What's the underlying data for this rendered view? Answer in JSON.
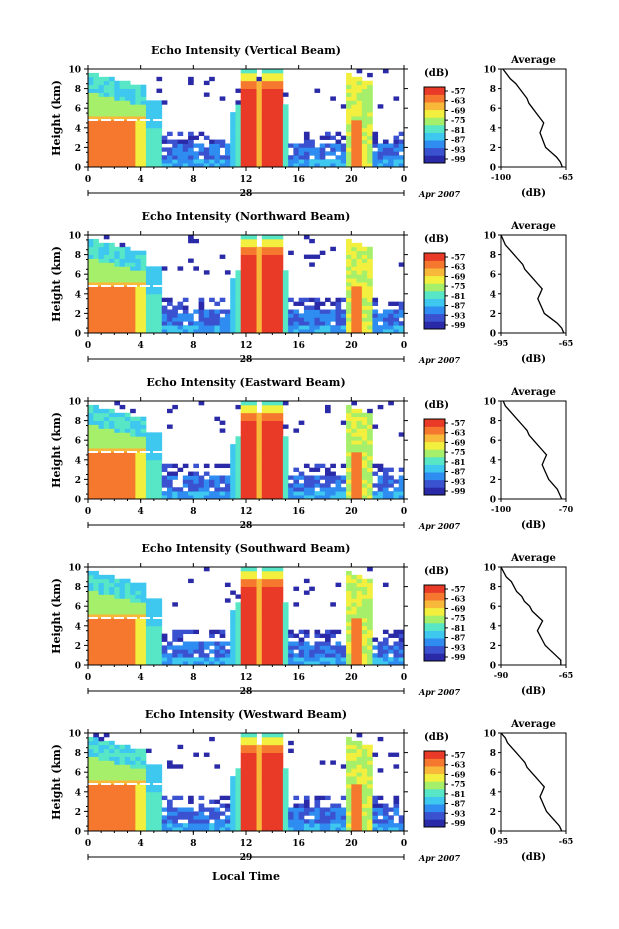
{
  "figure": {
    "panel_ylabel": "Height (km)",
    "xlabel": "Local Time",
    "date_label": "Apr 2007",
    "colorbar_unit": "(dB)",
    "colorbar_ticks": [
      "-57",
      "-63",
      "-69",
      "-75",
      "-81",
      "-87",
      "-93",
      "-99"
    ],
    "x_ticks": [
      "0",
      "4",
      "8",
      "12",
      "16",
      "20",
      "0"
    ],
    "y_ticks": [
      "0",
      "2",
      "4",
      "6",
      "8",
      "10"
    ],
    "avg_title": "Average",
    "avg_xlabel": "(dB)"
  },
  "colors": {
    "scale": [
      "#2a2aa8",
      "#3a52d0",
      "#2f8cf0",
      "#3ec8f0",
      "#57e6c6",
      "#a6ef6a",
      "#f2ef3e",
      "#f8b93a",
      "#f5782e",
      "#e83a26"
    ]
  },
  "chart_data": [
    {
      "type": "heatmap",
      "title": "Echo Intensity (Vertical Beam)",
      "day": "28",
      "x_range_hours": [
        0,
        24
      ],
      "y_range_km": [
        0,
        10
      ],
      "colorbar_range_db": [
        -99,
        -57
      ],
      "average_profile": {
        "xlim": [
          -100,
          -65
        ],
        "xticks": [
          "-100",
          "-65"
        ],
        "height_km": [
          0,
          0.5,
          1,
          1.5,
          2,
          2.5,
          3,
          3.5,
          4,
          4.5,
          5,
          5.5,
          6,
          6.5,
          7,
          7.5,
          8,
          8.5,
          9,
          9.5,
          10
        ],
        "db": [
          -67,
          -68,
          -70,
          -73,
          -76,
          -77,
          -78,
          -79,
          -78,
          -77,
          -79,
          -81,
          -83,
          -85,
          -86,
          -88,
          -90,
          -92,
          -95,
          -97,
          -99
        ]
      }
    },
    {
      "type": "heatmap",
      "title": "Echo Intensity (Northward Beam)",
      "day": "28",
      "x_range_hours": [
        0,
        24
      ],
      "y_range_km": [
        0,
        10
      ],
      "colorbar_range_db": [
        -99,
        -57
      ],
      "average_profile": {
        "xlim": [
          -95,
          -65
        ],
        "xticks": [
          "-95",
          "-65"
        ],
        "height_km": [
          0,
          0.5,
          1,
          1.5,
          2,
          2.5,
          3,
          3.5,
          4,
          4.5,
          5,
          5.5,
          6,
          6.5,
          7,
          7.5,
          8,
          8.5,
          9,
          9.5,
          10
        ],
        "db": [
          -66,
          -67,
          -69,
          -72,
          -75,
          -76,
          -77,
          -78,
          -77,
          -76,
          -78,
          -80,
          -82,
          -84,
          -85,
          -87,
          -89,
          -91,
          -93,
          -94,
          -95
        ]
      }
    },
    {
      "type": "heatmap",
      "title": "Echo Intensity (Eastward Beam)",
      "day": "28",
      "x_range_hours": [
        0,
        24
      ],
      "y_range_km": [
        0,
        10
      ],
      "colorbar_range_db": [
        -99,
        -57
      ],
      "average_profile": {
        "xlim": [
          -100,
          -70
        ],
        "xticks": [
          "-100",
          "-70"
        ],
        "height_km": [
          0,
          0.5,
          1,
          1.5,
          2,
          2.5,
          3,
          3.5,
          4,
          4.5,
          5,
          5.5,
          6,
          6.5,
          7,
          7.5,
          8,
          8.5,
          9,
          9.5,
          10
        ],
        "db": [
          -72,
          -73,
          -74,
          -76,
          -78,
          -79,
          -80,
          -81,
          -80,
          -79,
          -81,
          -83,
          -85,
          -87,
          -88,
          -90,
          -92,
          -94,
          -96,
          -98,
          -99
        ]
      }
    },
    {
      "type": "heatmap",
      "title": "Echo Intensity (Southward Beam)",
      "day": "28",
      "x_range_hours": [
        0,
        24
      ],
      "y_range_km": [
        0,
        10
      ],
      "colorbar_range_db": [
        -99,
        -57
      ],
      "average_profile": {
        "xlim": [
          -90,
          -65
        ],
        "xticks": [
          "-90",
          "-65"
        ],
        "height_km": [
          0,
          0.5,
          1,
          1.5,
          2,
          2.5,
          3,
          3.5,
          4,
          4.5,
          5,
          5.5,
          6,
          6.5,
          7,
          7.5,
          8,
          8.5,
          9,
          9.5,
          10
        ],
        "db": [
          -67,
          -67,
          -69,
          -71,
          -73,
          -74,
          -75,
          -76,
          -75,
          -74,
          -76,
          -78,
          -79,
          -81,
          -82,
          -84,
          -85,
          -86,
          -88,
          -89,
          -90
        ]
      }
    },
    {
      "type": "heatmap",
      "title": "Echo Intensity (Westward Beam)",
      "day": "29",
      "x_range_hours": [
        0,
        24
      ],
      "y_range_km": [
        0,
        10
      ],
      "colorbar_range_db": [
        -99,
        -57
      ],
      "average_profile": {
        "xlim": [
          -95,
          -65
        ],
        "xticks": [
          "-95",
          "-65"
        ],
        "height_km": [
          0,
          0.5,
          1,
          1.5,
          2,
          2.5,
          3,
          3.5,
          4,
          4.5,
          5,
          5.5,
          6,
          6.5,
          7,
          7.5,
          8,
          8.5,
          9,
          9.5,
          10
        ],
        "db": [
          -67,
          -68,
          -70,
          -72,
          -74,
          -75,
          -76,
          -77,
          -76,
          -75,
          -77,
          -79,
          -81,
          -83,
          -84,
          -86,
          -88,
          -90,
          -92,
          -93,
          -95
        ]
      }
    }
  ]
}
